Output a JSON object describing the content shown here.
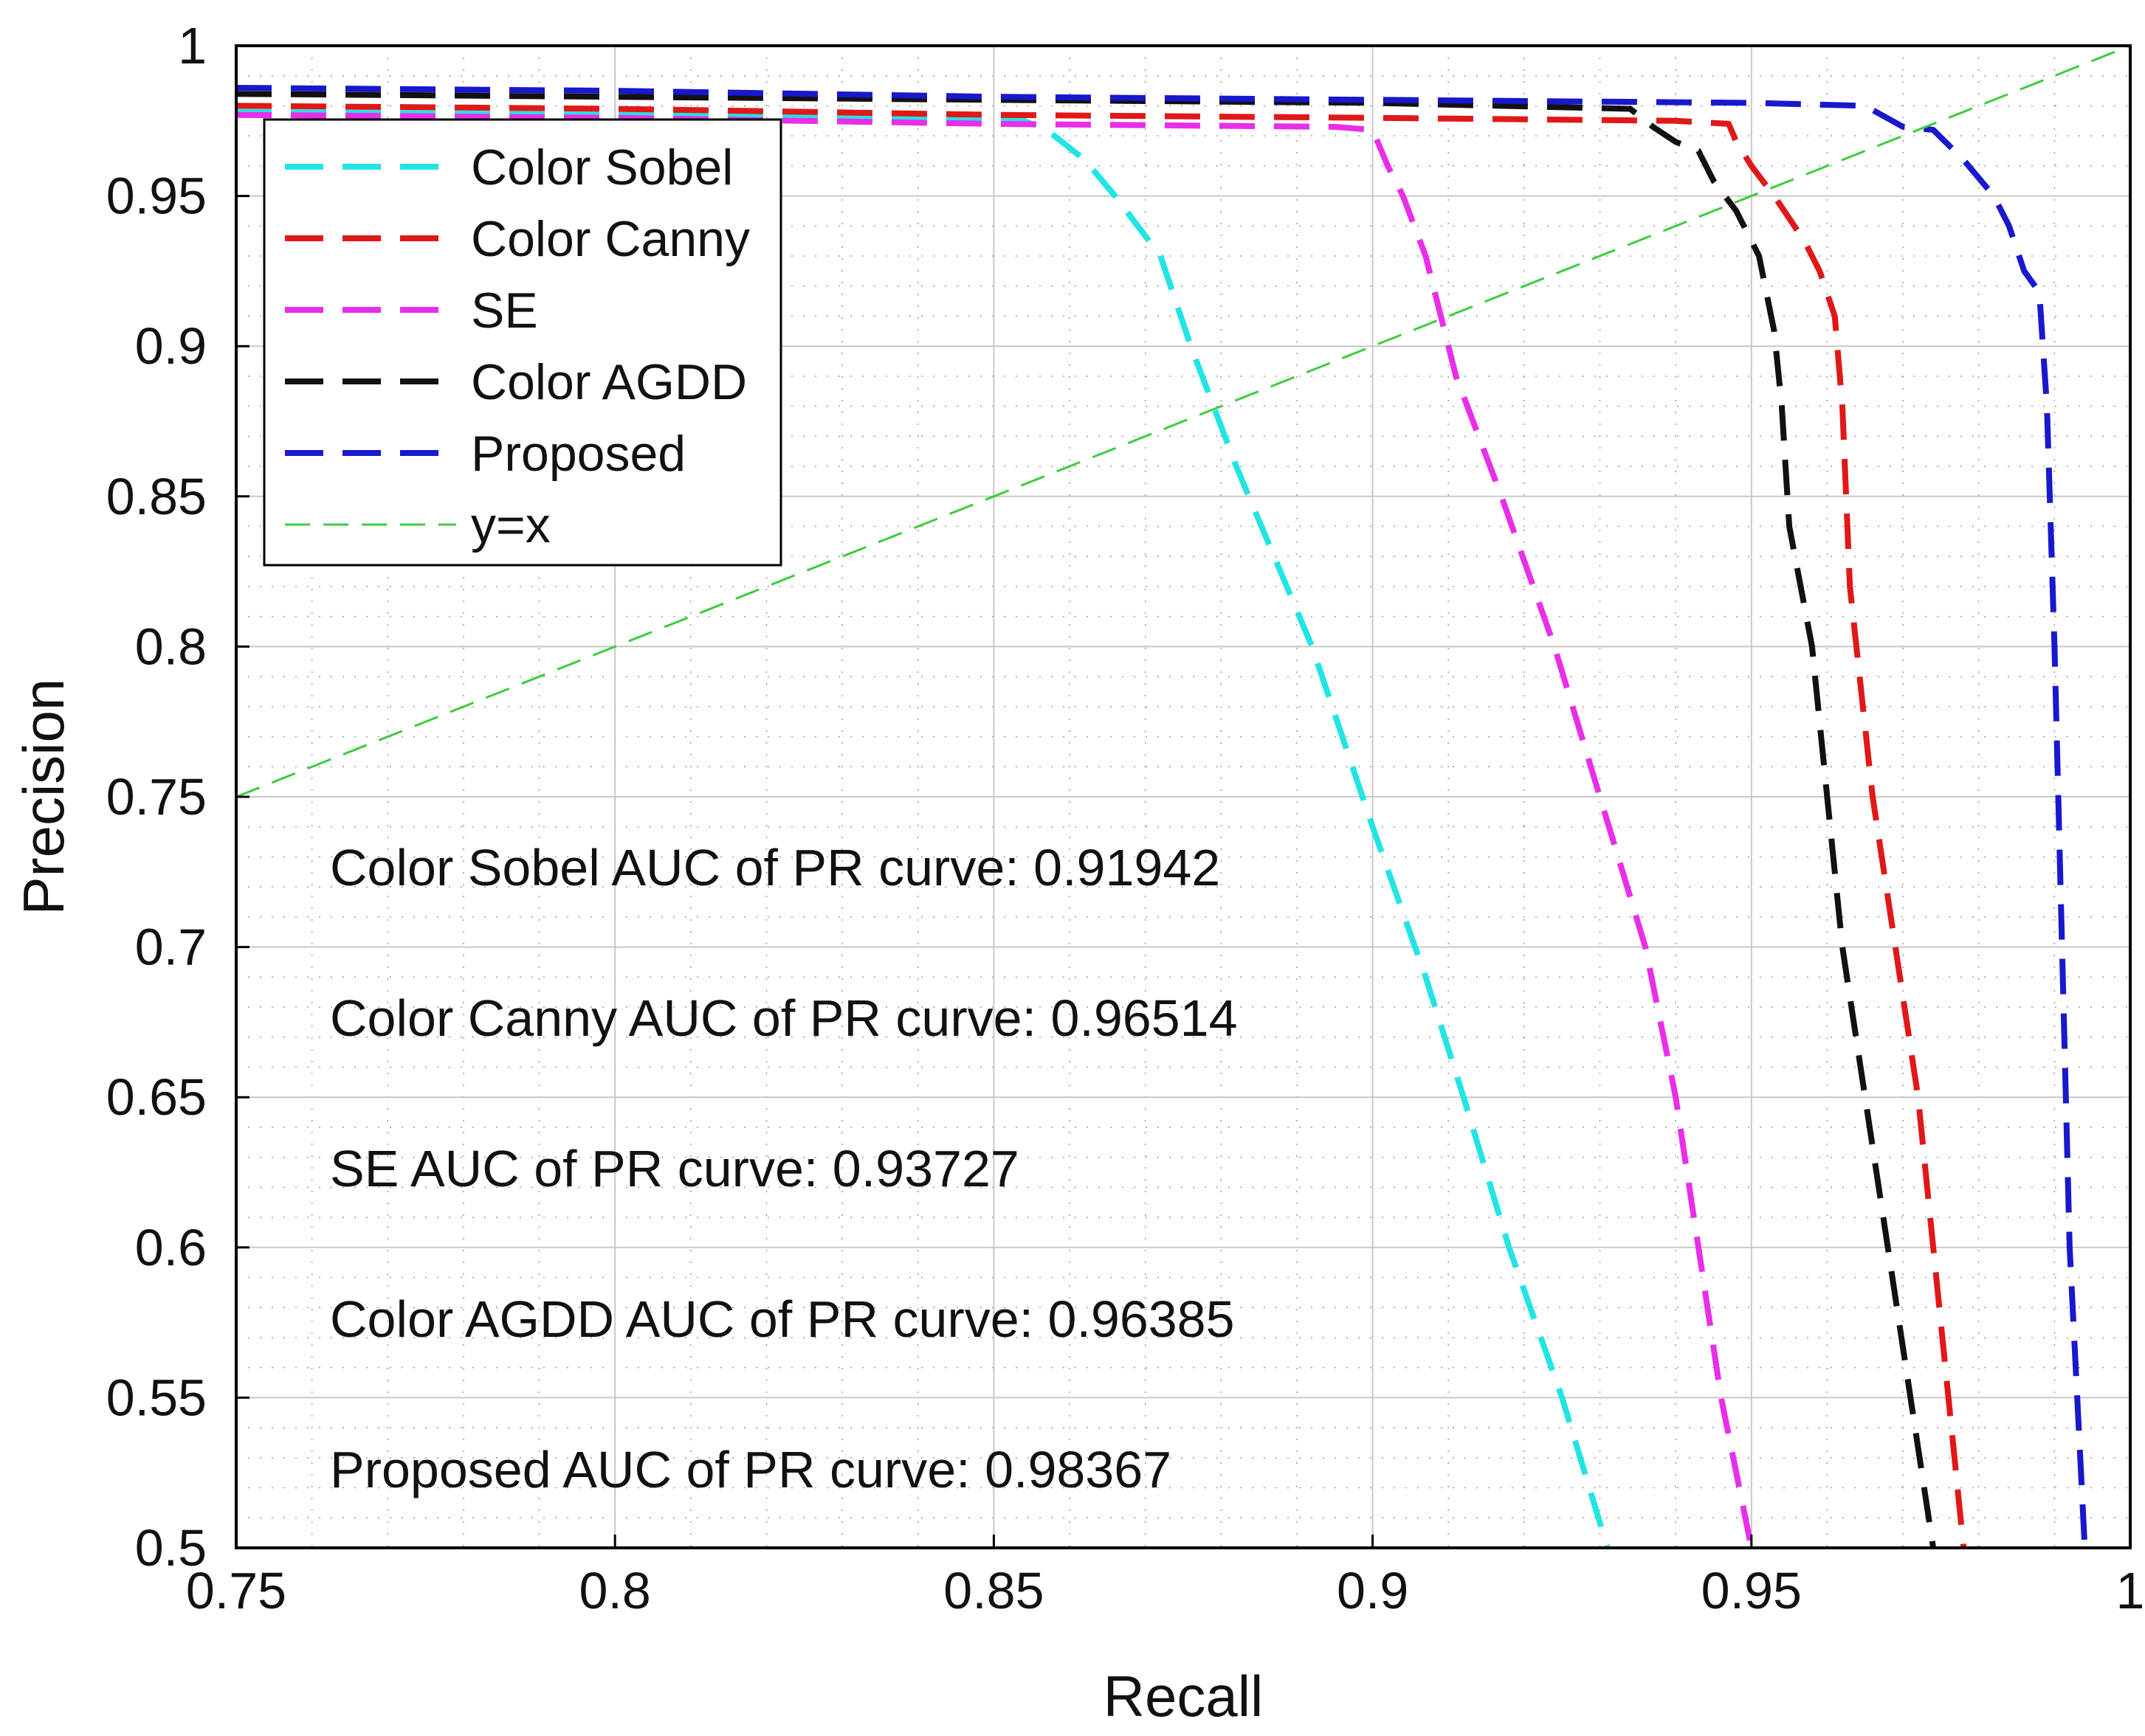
{
  "chart_data": {
    "type": "line",
    "title": "",
    "xlabel": "Recall",
    "ylabel": "Precision",
    "xlim": [
      0.75,
      1
    ],
    "ylim": [
      0.5,
      1
    ],
    "x_ticks": [
      0.75,
      0.8,
      0.85,
      0.9,
      0.95,
      1
    ],
    "x_tick_labels": [
      "0.75",
      "0.8",
      "0.85",
      "0.9",
      "0.95",
      "1"
    ],
    "y_ticks": [
      0.5,
      0.55,
      0.6,
      0.65,
      0.7,
      0.75,
      0.8,
      0.85,
      0.9,
      0.95,
      1
    ],
    "y_tick_labels": [
      "0.5",
      "0.55",
      "0.6",
      "0.65",
      "0.7",
      "0.75",
      "0.8",
      "0.85",
      "0.9",
      "0.95",
      "1"
    ],
    "grid": true,
    "minor_grid": true,
    "legend_position": "top-left",
    "series": [
      {
        "name": "Color Sobel",
        "color": "#22e4e4",
        "style": "dashed",
        "points": [
          [
            0.75,
            0.978
          ],
          [
            0.8,
            0.977
          ],
          [
            0.84,
            0.976
          ],
          [
            0.854,
            0.975
          ],
          [
            0.857,
            0.972
          ],
          [
            0.862,
            0.962
          ],
          [
            0.866,
            0.95
          ],
          [
            0.872,
            0.93
          ],
          [
            0.876,
            0.9
          ],
          [
            0.882,
            0.86
          ],
          [
            0.892,
            0.8
          ],
          [
            0.9,
            0.74
          ],
          [
            0.907,
            0.69
          ],
          [
            0.912,
            0.65
          ],
          [
            0.918,
            0.6
          ],
          [
            0.925,
            0.55
          ],
          [
            0.931,
            0.5
          ]
        ]
      },
      {
        "name": "Color Canny",
        "color": "#e01818",
        "style": "dashed",
        "points": [
          [
            0.75,
            0.98
          ],
          [
            0.8,
            0.979
          ],
          [
            0.85,
            0.977
          ],
          [
            0.9,
            0.976
          ],
          [
            0.94,
            0.975
          ],
          [
            0.947,
            0.974
          ],
          [
            0.948,
            0.968
          ],
          [
            0.95,
            0.96
          ],
          [
            0.953,
            0.95
          ],
          [
            0.957,
            0.935
          ],
          [
            0.959,
            0.925
          ],
          [
            0.961,
            0.91
          ],
          [
            0.962,
            0.88
          ],
          [
            0.963,
            0.82
          ],
          [
            0.966,
            0.75
          ],
          [
            0.969,
            0.7
          ],
          [
            0.972,
            0.65
          ],
          [
            0.974,
            0.6
          ],
          [
            0.976,
            0.55
          ],
          [
            0.978,
            0.5
          ]
        ]
      },
      {
        "name": "SE",
        "color": "#e82ee8",
        "style": "dashed",
        "points": [
          [
            0.75,
            0.977
          ],
          [
            0.8,
            0.976
          ],
          [
            0.85,
            0.974
          ],
          [
            0.895,
            0.973
          ],
          [
            0.9,
            0.972
          ],
          [
            0.902,
            0.96
          ],
          [
            0.904,
            0.95
          ],
          [
            0.907,
            0.93
          ],
          [
            0.909,
            0.91
          ],
          [
            0.911,
            0.89
          ],
          [
            0.917,
            0.85
          ],
          [
            0.924,
            0.8
          ],
          [
            0.93,
            0.75
          ],
          [
            0.936,
            0.7
          ],
          [
            0.94,
            0.65
          ],
          [
            0.943,
            0.6
          ],
          [
            0.946,
            0.55
          ],
          [
            0.95,
            0.5
          ]
        ]
      },
      {
        "name": "Color AGDD",
        "color": "#111111",
        "style": "dashed",
        "points": [
          [
            0.75,
            0.984
          ],
          [
            0.8,
            0.983
          ],
          [
            0.85,
            0.982
          ],
          [
            0.9,
            0.981
          ],
          [
            0.934,
            0.979
          ],
          [
            0.937,
            0.973
          ],
          [
            0.94,
            0.968
          ],
          [
            0.943,
            0.965
          ],
          [
            0.945,
            0.955
          ],
          [
            0.948,
            0.945
          ],
          [
            0.951,
            0.93
          ],
          [
            0.953,
            0.905
          ],
          [
            0.954,
            0.88
          ],
          [
            0.955,
            0.84
          ],
          [
            0.958,
            0.8
          ],
          [
            0.96,
            0.75
          ],
          [
            0.962,
            0.7
          ],
          [
            0.965,
            0.65
          ],
          [
            0.968,
            0.6
          ],
          [
            0.971,
            0.55
          ],
          [
            0.974,
            0.5
          ]
        ]
      },
      {
        "name": "Proposed",
        "color": "#1818cc",
        "style": "dashed",
        "points": [
          [
            0.75,
            0.986
          ],
          [
            0.8,
            0.985
          ],
          [
            0.85,
            0.983
          ],
          [
            0.9,
            0.982
          ],
          [
            0.95,
            0.981
          ],
          [
            0.965,
            0.98
          ],
          [
            0.97,
            0.973
          ],
          [
            0.974,
            0.972
          ],
          [
            0.978,
            0.962
          ],
          [
            0.982,
            0.95
          ],
          [
            0.984,
            0.94
          ],
          [
            0.986,
            0.925
          ],
          [
            0.988,
            0.918
          ],
          [
            0.989,
            0.88
          ],
          [
            0.99,
            0.8
          ],
          [
            0.991,
            0.7
          ],
          [
            0.992,
            0.6
          ],
          [
            0.993,
            0.55
          ],
          [
            0.994,
            0.5
          ]
        ]
      },
      {
        "name": "y=x",
        "color": "#3ccc3c",
        "style": "thin-dashed",
        "points": [
          [
            0.75,
            0.75
          ],
          [
            1.0,
            1.0
          ]
        ]
      }
    ],
    "annotations": [
      "Color Sobel AUC of PR curve: 0.91942",
      "Color Canny AUC of PR curve: 0.96514",
      "SE AUC of PR curve: 0.93727",
      "Color AGDD AUC of PR curve: 0.96385",
      "Proposed AUC of PR curve: 0.98367"
    ]
  }
}
